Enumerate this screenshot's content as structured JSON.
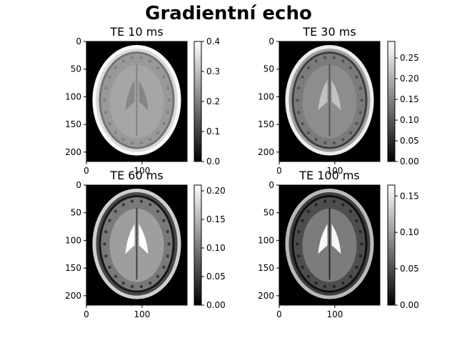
{
  "figure": {
    "title": "Gradientní echo"
  },
  "colors": {
    "background": "#ffffff",
    "axis": "#000000",
    "colormap_low": "#000000",
    "colormap_high": "#ffffff"
  },
  "panels": [
    {
      "title": "TE 10 ms",
      "colorbar": {
        "range": [
          0,
          0.4
        ],
        "ticks": [
          "0.0",
          "0.1",
          "0.2",
          "0.3",
          "0.4"
        ]
      },
      "tissue": {
        "skull": 0.34,
        "fat": 0.39,
        "csf_ring": 0.18,
        "gray": 0.24,
        "white": 0.26,
        "ventricle": 0.21,
        "background": 0.0
      }
    },
    {
      "title": "TE 30 ms",
      "colorbar": {
        "range": [
          0,
          0.29
        ],
        "ticks": [
          "0.00",
          "0.05",
          "0.10",
          "0.15",
          "0.20",
          "0.25"
        ]
      },
      "tissue": {
        "skull": 0.18,
        "fat": 0.27,
        "csf_ring": 0.07,
        "gray": 0.14,
        "white": 0.16,
        "ventricle": 0.22,
        "background": 0.0
      }
    },
    {
      "title": "TE 60 ms",
      "colorbar": {
        "range": [
          0,
          0.21
        ],
        "ticks": [
          "0.00",
          "0.05",
          "0.10",
          "0.15",
          "0.20"
        ]
      },
      "tissue": {
        "skull": 0.06,
        "fat": 0.17,
        "csf_ring": 0.02,
        "gray": 0.1,
        "white": 0.13,
        "ventricle": 0.21,
        "background": 0.0
      }
    },
    {
      "title": "TE 100 ms",
      "colorbar": {
        "range": [
          0,
          0.165
        ],
        "ticks": [
          "0.00",
          "0.05",
          "0.10",
          "0.15"
        ]
      },
      "tissue": {
        "skull": 0.04,
        "fat": 0.12,
        "csf_ring": 0.01,
        "gray": 0.05,
        "white": 0.08,
        "ventricle": 0.16,
        "background": 0.0
      }
    }
  ],
  "axes": {
    "y_ticks": [
      "0",
      "50",
      "100",
      "150",
      "200"
    ],
    "x_ticks": [
      "0",
      "100"
    ]
  }
}
